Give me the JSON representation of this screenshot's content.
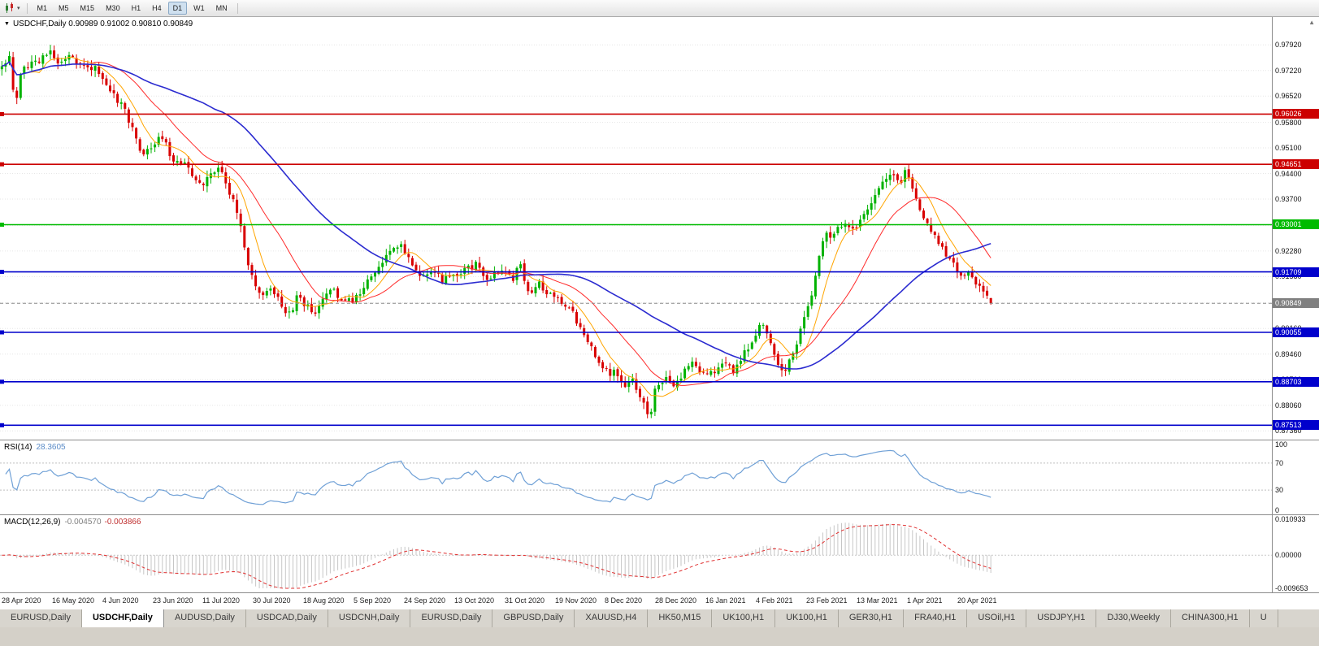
{
  "icons": {
    "quote_dropdown": "▼",
    "toolbar_caret": "▾",
    "scroll_up": "▲"
  },
  "toolbar": {
    "timeframes": [
      "M1",
      "M5",
      "M15",
      "M30",
      "H1",
      "H4",
      "D1",
      "W1",
      "MN"
    ],
    "active_timeframe": "D1"
  },
  "quote": {
    "symbol": "USDCHF,Daily",
    "ohlc": "0.90989 0.91002 0.90810 0.90849"
  },
  "chart_data": {
    "type": "candlestick",
    "title": "USDCHF,Daily",
    "ohlc_line": "0.90989 0.91002 0.90810 0.90849",
    "bars": 266,
    "series_fraction": 0.78,
    "ylim": [
      0.8712,
      0.9868
    ],
    "y_ticks": [
      "0.97920",
      "0.97220",
      "0.96520",
      "0.95800",
      "0.95100",
      "0.94400",
      "0.93700",
      "0.92980",
      "0.92280",
      "0.91580",
      "0.90860",
      "0.90160",
      "0.89460",
      "0.88760",
      "0.88060",
      "0.87360"
    ],
    "x_labels": [
      "28 Apr 2020",
      "16 May 2020",
      "4 Jun 2020",
      "23 Jun 2020",
      "11 Jul 2020",
      "30 Jul 2020",
      "18 Aug 2020",
      "5 Sep 2020",
      "24 Sep 2020",
      "13 Oct 2020",
      "31 Oct 2020",
      "19 Nov 2020",
      "8 Dec 2020",
      "28 Dec 2020",
      "16 Jan 2021",
      "4 Feb 2021",
      "23 Feb 2021",
      "13 Mar 2021",
      "1 Apr 2021",
      "20 Apr 2021"
    ],
    "close_keypoints": [
      [
        0.0,
        0.9738
      ],
      [
        0.008,
        0.976
      ],
      [
        0.013,
        0.9618
      ],
      [
        0.02,
        0.9728
      ],
      [
        0.034,
        0.9748
      ],
      [
        0.051,
        0.9772
      ],
      [
        0.06,
        0.9738
      ],
      [
        0.072,
        0.9762
      ],
      [
        0.085,
        0.9718
      ],
      [
        0.096,
        0.9732
      ],
      [
        0.102,
        0.9705
      ],
      [
        0.112,
        0.9662
      ],
      [
        0.122,
        0.9625
      ],
      [
        0.132,
        0.956
      ],
      [
        0.142,
        0.9485
      ],
      [
        0.152,
        0.9515
      ],
      [
        0.162,
        0.9538
      ],
      [
        0.172,
        0.9485
      ],
      [
        0.182,
        0.9468
      ],
      [
        0.192,
        0.9438
      ],
      [
        0.203,
        0.9398
      ],
      [
        0.212,
        0.9455
      ],
      [
        0.222,
        0.9442
      ],
      [
        0.232,
        0.938
      ],
      [
        0.242,
        0.9285
      ],
      [
        0.25,
        0.9185
      ],
      [
        0.254,
        0.9138
      ],
      [
        0.262,
        0.9095
      ],
      [
        0.272,
        0.9132
      ],
      [
        0.282,
        0.9078
      ],
      [
        0.292,
        0.9048
      ],
      [
        0.3,
        0.9118
      ],
      [
        0.305,
        0.9088
      ],
      [
        0.315,
        0.9052
      ],
      [
        0.325,
        0.9098
      ],
      [
        0.335,
        0.9132
      ],
      [
        0.345,
        0.9082
      ],
      [
        0.355,
        0.9095
      ],
      [
        0.368,
        0.9132
      ],
      [
        0.382,
        0.9188
      ],
      [
        0.394,
        0.9238
      ],
      [
        0.402,
        0.9252
      ],
      [
        0.412,
        0.9212
      ],
      [
        0.422,
        0.9152
      ],
      [
        0.434,
        0.9178
      ],
      [
        0.446,
        0.9145
      ],
      [
        0.457,
        0.9158
      ],
      [
        0.468,
        0.9178
      ],
      [
        0.48,
        0.9192
      ],
      [
        0.492,
        0.915
      ],
      [
        0.5,
        0.9172
      ],
      [
        0.508,
        0.9188
      ],
      [
        0.516,
        0.915
      ],
      [
        0.524,
        0.9192
      ],
      [
        0.532,
        0.9115
      ],
      [
        0.542,
        0.9138
      ],
      [
        0.55,
        0.9112
      ],
      [
        0.558,
        0.9105
      ],
      [
        0.568,
        0.9088
      ],
      [
        0.578,
        0.9055
      ],
      [
        0.59,
        0.8995
      ],
      [
        0.6,
        0.8948
      ],
      [
        0.609,
        0.8905
      ],
      [
        0.619,
        0.8892
      ],
      [
        0.629,
        0.8852
      ],
      [
        0.637,
        0.8878
      ],
      [
        0.645,
        0.8822
      ],
      [
        0.65,
        0.8798
      ],
      [
        0.654,
        0.8768
      ],
      [
        0.658,
        0.8812
      ],
      [
        0.66,
        0.8842
      ],
      [
        0.67,
        0.8882
      ],
      [
        0.68,
        0.8852
      ],
      [
        0.69,
        0.8895
      ],
      [
        0.7,
        0.8922
      ],
      [
        0.711,
        0.8885
      ],
      [
        0.721,
        0.8905
      ],
      [
        0.731,
        0.8932
      ],
      [
        0.741,
        0.8895
      ],
      [
        0.751,
        0.8952
      ],
      [
        0.762,
        0.9002
      ],
      [
        0.768,
        0.9035
      ],
      [
        0.776,
        0.8975
      ],
      [
        0.784,
        0.8922
      ],
      [
        0.792,
        0.8905
      ],
      [
        0.802,
        0.8968
      ],
      [
        0.812,
        0.9042
      ],
      [
        0.822,
        0.9142
      ],
      [
        0.832,
        0.9292
      ],
      [
        0.84,
        0.9262
      ],
      [
        0.85,
        0.9302
      ],
      [
        0.863,
        0.9288
      ],
      [
        0.873,
        0.9332
      ],
      [
        0.883,
        0.9392
      ],
      [
        0.893,
        0.9432
      ],
      [
        0.9,
        0.9448
      ],
      [
        0.907,
        0.9412
      ],
      [
        0.914,
        0.9442
      ],
      [
        0.922,
        0.9395
      ],
      [
        0.93,
        0.933
      ],
      [
        0.938,
        0.929
      ],
      [
        0.946,
        0.9252
      ],
      [
        0.954,
        0.9222
      ],
      [
        0.965,
        0.9182
      ],
      [
        0.972,
        0.9148
      ],
      [
        0.98,
        0.9168
      ],
      [
        0.988,
        0.9128
      ],
      [
        0.994,
        0.9115
      ],
      [
        1.0,
        0.90849
      ]
    ],
    "last_candle": {
      "open": 0.90989,
      "high": 0.91002,
      "low": 0.9081,
      "close": 0.90849
    },
    "colors": {
      "up": "#00B200",
      "down": "#D80000",
      "ma_fast": "#FFA500",
      "ma_mid": "#FF2A2A",
      "ma_slow": "#2B2BD0",
      "rsi": "#6FA0D6",
      "macd_hist": "#C6C6C6",
      "macd_signal": "#E03030"
    },
    "moving_averages": [
      {
        "period": 8,
        "color": "#FFA500",
        "width": 1
      },
      {
        "period": 21,
        "color": "#FF2A2A",
        "width": 1
      },
      {
        "period": 55,
        "color": "#2B2BD0",
        "width": 1.6
      }
    ],
    "hlines": [
      {
        "label": "0.96026",
        "value": 0.96026,
        "color": "#CC0000"
      },
      {
        "label": "0.94651",
        "value": 0.94651,
        "color": "#CC0000"
      },
      {
        "label": "0.93001",
        "value": 0.93001,
        "color": "#00BB00"
      },
      {
        "label": "0.91709",
        "value": 0.91709,
        "color": "#0000CC"
      },
      {
        "label": "0.90055",
        "value": 0.90055,
        "color": "#0000CC"
      },
      {
        "label": "0.88703",
        "value": 0.88703,
        "color": "#0000CC"
      },
      {
        "label": "0.87513",
        "value": 0.87513,
        "color": "#0000CC"
      }
    ],
    "current_price": {
      "label": "0.90849",
      "value": 0.90849
    },
    "rsi": {
      "label": "RSI(14)",
      "value": "28.3605",
      "period": 14,
      "levels": [
        70,
        30
      ],
      "axis_labels": [
        "100",
        "70",
        "30",
        "0"
      ]
    },
    "macd": {
      "label": "MACD(12,26,9)",
      "value_main": "-0.004570",
      "value_signal": "-0.003866",
      "fast": 12,
      "slow": 26,
      "signal": 9,
      "range": [
        -0.009653,
        0.010933
      ],
      "axis_labels": [
        "0.010933",
        "0.00000",
        "-0.009653"
      ]
    }
  },
  "tabs": {
    "items": [
      "EURUSD,Daily",
      "USDCHF,Daily",
      "AUDUSD,Daily",
      "USDCAD,Daily",
      "USDCNH,Daily",
      "EURUSD,Daily",
      "GBPUSD,Daily",
      "XAUUSD,H4",
      "HK50,M15",
      "UK100,H1",
      "UK100,H1",
      "GER30,H1",
      "FRA40,H1",
      "USOil,H1",
      "USDJPY,H1",
      "DJ30,Weekly",
      "CHINA300,H1",
      "U"
    ],
    "active_index": 1
  }
}
